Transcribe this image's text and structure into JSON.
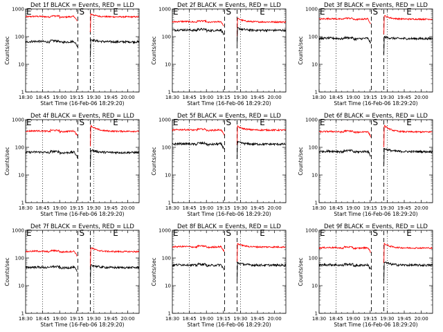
{
  "chart_data": {
    "type": "line",
    "layout": "3x3 grid",
    "xlabel": "Start Time (16-Feb-06 18:29:20)",
    "ylabel": "Counts/sec",
    "yscale": "log",
    "ylim": [
      1,
      1000
    ],
    "y_ticks": [
      "1",
      "10",
      "100",
      "1000"
    ],
    "xlim_minutes_after_1830": [
      0,
      100
    ],
    "x_ticks": [
      "18:30",
      "18:45",
      "19:00",
      "19:15",
      "19:30",
      "19:45",
      "20:00"
    ],
    "series_colors": {
      "events": "#000000",
      "lld": "#ff0000"
    },
    "dotted_markers": [
      "18:45",
      "19:30"
    ],
    "dashed_markers": [
      "19:16",
      "19:27"
    ],
    "marker_labels": [
      "S",
      "E"
    ],
    "panels": [
      {
        "title": "Det 1f BLACK = Events, RED = LLD",
        "events_level": 65,
        "lld_level": 520,
        "events_max": 82,
        "lld_max": 680
      },
      {
        "title": "Det 2f BLACK = Events, RED = LLD",
        "events_level": 170,
        "lld_level": 340,
        "events_max": 210,
        "lld_max": 480
      },
      {
        "title": "Det 3f BLACK = Events, RED = LLD",
        "events_level": 85,
        "lld_level": 430,
        "events_max": 100,
        "lld_max": 600
      },
      {
        "title": "Det 4f BLACK = Events, RED = LLD",
        "events_level": 65,
        "lld_level": 380,
        "events_max": 85,
        "lld_max": 650
      },
      {
        "title": "Det 5f BLACK = Events, RED = LLD",
        "events_level": 130,
        "lld_level": 420,
        "events_max": 160,
        "lld_max": 600
      },
      {
        "title": "Det 6f BLACK = Events, RED = LLD",
        "events_level": 70,
        "lld_level": 360,
        "events_max": 95,
        "lld_max": 650
      },
      {
        "title": "Det 7f BLACK = Events, RED = LLD",
        "events_level": 45,
        "lld_level": 170,
        "events_max": 60,
        "lld_max": 250
      },
      {
        "title": "Det 8f BLACK = Events, RED = LLD",
        "events_level": 55,
        "lld_level": 250,
        "events_max": 70,
        "lld_max": 350
      },
      {
        "title": "Det 9f BLACK = Events, RED = LLD",
        "events_level": 55,
        "lld_level": 230,
        "events_max": 75,
        "lld_max": 350
      }
    ]
  }
}
